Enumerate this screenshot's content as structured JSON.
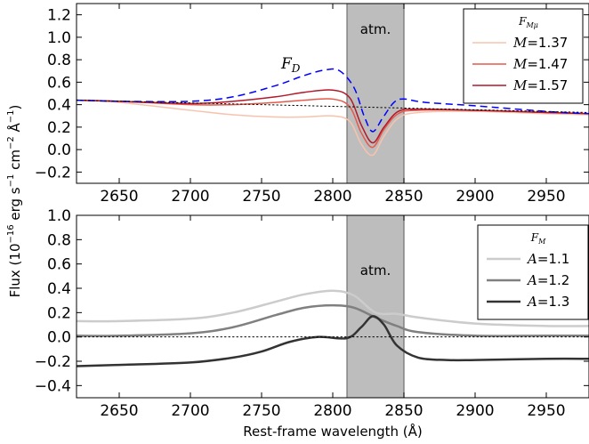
{
  "chart_data": [
    {
      "type": "line",
      "panel": "top",
      "xlim": [
        2620,
        2980
      ],
      "ylim": [
        -0.3,
        1.3
      ],
      "x_ticks": [
        2650,
        2700,
        2750,
        2800,
        2850,
        2900,
        2950
      ],
      "y_ticks": [
        -0.2,
        0.0,
        0.2,
        0.4,
        0.6,
        0.8,
        1.0,
        1.2
      ],
      "y_tick_labels": [
        "−0.2",
        "0.0",
        "0.2",
        "0.4",
        "0.6",
        "0.8",
        "1.0",
        "1.2"
      ],
      "shaded_band": {
        "x_range": [
          2810,
          2850
        ],
        "label": "atm.",
        "color": "#bdbdbd"
      },
      "legend": {
        "title": "F_Mμ",
        "title_main": "F",
        "title_sub": "Mμ",
        "position": "top-right"
      },
      "annotation": {
        "text": "F",
        "sub": "D",
        "color": "#0000ff"
      },
      "series": [
        {
          "name": "M=1.37",
          "label_var": "M",
          "label_val": "=1.37",
          "color": "#f7c3ad",
          "style": "solid",
          "width": 1.5,
          "x": [
            2620,
            2650,
            2700,
            2730,
            2760,
            2780,
            2800,
            2812,
            2820,
            2828,
            2836,
            2846,
            2860,
            2900,
            2950,
            2980
          ],
          "y": [
            0.44,
            0.42,
            0.35,
            0.31,
            0.29,
            0.29,
            0.3,
            0.25,
            0.05,
            -0.05,
            0.12,
            0.28,
            0.33,
            0.34,
            0.32,
            0.31
          ]
        },
        {
          "name": "M=1.47",
          "label_var": "M",
          "label_val": "=1.47",
          "color": "#e45a4a",
          "style": "solid",
          "width": 1.5,
          "x": [
            2620,
            2650,
            2700,
            2730,
            2760,
            2780,
            2800,
            2812,
            2820,
            2828,
            2836,
            2846,
            2860,
            2900,
            2950,
            2980
          ],
          "y": [
            0.44,
            0.43,
            0.4,
            0.4,
            0.42,
            0.44,
            0.45,
            0.38,
            0.15,
            0.02,
            0.18,
            0.32,
            0.35,
            0.35,
            0.33,
            0.32
          ]
        },
        {
          "name": "M=1.57",
          "label_var": "M",
          "label_val": "=1.57",
          "color": "#b2182b",
          "style": "solid",
          "width": 1.5,
          "x": [
            2620,
            2650,
            2700,
            2730,
            2760,
            2780,
            2800,
            2812,
            2820,
            2828,
            2836,
            2846,
            2860,
            2900,
            2950,
            2980
          ],
          "y": [
            0.44,
            0.43,
            0.41,
            0.43,
            0.47,
            0.51,
            0.53,
            0.46,
            0.22,
            0.06,
            0.2,
            0.34,
            0.36,
            0.35,
            0.33,
            0.32
          ]
        },
        {
          "name": "F_D",
          "color": "#0000ff",
          "style": "dashed",
          "width": 1.5,
          "x": [
            2620,
            2650,
            2700,
            2730,
            2760,
            2780,
            2795,
            2805,
            2815,
            2822,
            2828,
            2835,
            2843,
            2850,
            2865,
            2900,
            2950,
            2980
          ],
          "y": [
            0.44,
            0.43,
            0.43,
            0.47,
            0.57,
            0.66,
            0.71,
            0.7,
            0.55,
            0.3,
            0.16,
            0.28,
            0.42,
            0.45,
            0.42,
            0.39,
            0.34,
            0.32
          ]
        },
        {
          "name": "baseline",
          "color": "#000000",
          "style": "dotted",
          "width": 1,
          "x": [
            2620,
            2980
          ],
          "y": [
            0.44,
            0.33
          ]
        }
      ]
    },
    {
      "type": "line",
      "panel": "bottom",
      "xlim": [
        2620,
        2980
      ],
      "ylim": [
        -0.5,
        1.0
      ],
      "x_ticks": [
        2650,
        2700,
        2750,
        2800,
        2850,
        2900,
        2950
      ],
      "y_ticks": [
        -0.4,
        -0.2,
        0.0,
        0.2,
        0.4,
        0.6,
        0.8,
        1.0
      ],
      "y_tick_labels": [
        "−0.4",
        "−0.2",
        "0.0",
        "0.2",
        "0.4",
        "0.6",
        "0.8",
        "1.0"
      ],
      "shaded_band": {
        "x_range": [
          2810,
          2850
        ],
        "label": "atm.",
        "color": "#bdbdbd"
      },
      "legend": {
        "title": "F_M",
        "title_main": "F",
        "title_sub": "M",
        "position": "top-right"
      },
      "series": [
        {
          "name": "A=1.1",
          "label_var": "A",
          "label_val": "=1.1",
          "color": "#cccccc",
          "style": "solid",
          "width": 2.5,
          "x": [
            2620,
            2650,
            2700,
            2730,
            2760,
            2780,
            2800,
            2815,
            2830,
            2845,
            2860,
            2900,
            2950,
            2980
          ],
          "y": [
            0.13,
            0.13,
            0.15,
            0.2,
            0.29,
            0.35,
            0.38,
            0.34,
            0.2,
            0.19,
            0.16,
            0.11,
            0.09,
            0.09
          ]
        },
        {
          "name": "A=1.2",
          "label_var": "A",
          "label_val": "=1.2",
          "color": "#808080",
          "style": "solid",
          "width": 2.5,
          "x": [
            2620,
            2650,
            2700,
            2730,
            2760,
            2780,
            2800,
            2815,
            2830,
            2845,
            2860,
            2900,
            2950,
            2980
          ],
          "y": [
            0.01,
            0.01,
            0.03,
            0.08,
            0.18,
            0.24,
            0.26,
            0.24,
            0.16,
            0.09,
            0.04,
            0.01,
            0.01,
            0.01
          ]
        },
        {
          "name": "A=1.3",
          "label_var": "A",
          "label_val": "=1.3",
          "color": "#333333",
          "style": "solid",
          "width": 2.5,
          "x": [
            2620,
            2650,
            2700,
            2730,
            2750,
            2770,
            2790,
            2810,
            2820,
            2828,
            2836,
            2845,
            2860,
            2880,
            2900,
            2950,
            2980
          ],
          "y": [
            -0.24,
            -0.23,
            -0.21,
            -0.17,
            -0.12,
            -0.04,
            0.0,
            -0.01,
            0.08,
            0.17,
            0.1,
            -0.07,
            -0.17,
            -0.19,
            -0.19,
            -0.18,
            -0.18
          ]
        },
        {
          "name": "baseline",
          "color": "#000000",
          "style": "dotted",
          "width": 1,
          "x": [
            2620,
            2980
          ],
          "y": [
            0.0,
            0.0
          ]
        }
      ]
    }
  ],
  "shared": {
    "xlabel": "Rest-frame wavelength (Å)",
    "ylabel_prefix": "Flux (10",
    "ylabel_exp": "−16",
    "ylabel_middle": " erg s",
    "ylabel_exp2": "−1",
    "ylabel_cm": " cm",
    "ylabel_exp3": "−2",
    "ylabel_ang": " Å",
    "ylabel_exp4": "−1",
    "ylabel_close": ")"
  }
}
